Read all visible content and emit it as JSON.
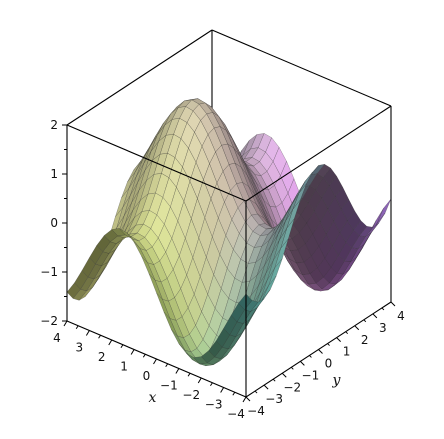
{
  "chart_data": {
    "type": "surface3d",
    "title": "",
    "x_axis": {
      "label": "x",
      "range": [
        -4,
        4
      ],
      "ticks": [
        4,
        3,
        2,
        1,
        0,
        -1,
        -2,
        -3,
        -4
      ],
      "tick_labels": [
        "4",
        "3",
        "2",
        "1",
        "0",
        "−1",
        "−2",
        "−3",
        "−4"
      ]
    },
    "y_axis": {
      "label": "y",
      "range": [
        -4,
        4
      ],
      "ticks": [
        4,
        3,
        2,
        1,
        0,
        -1,
        -2,
        -3,
        -4
      ],
      "tick_labels": [
        "4",
        "3",
        "2",
        "1",
        "0",
        "−1",
        "−2",
        "−3",
        "−4"
      ]
    },
    "z_axis": {
      "label": "",
      "range": [
        -2,
        2
      ],
      "ticks": [
        2,
        1,
        0,
        -1,
        -2
      ],
      "tick_labels": [
        "2",
        "1",
        "0",
        "−1",
        "−2"
      ]
    },
    "function": "sin(x) + cos(y)",
    "box": true,
    "grid": true,
    "colors": {
      "yellow": "#f4f48a",
      "green": "#7fa84d",
      "cyan": "#6fe8ee",
      "blue": "#8a8ef0",
      "magenta": "#cc66dd",
      "gray": "#c4c4c4",
      "mesh": "#2a2a2a",
      "box": "#000000"
    }
  }
}
